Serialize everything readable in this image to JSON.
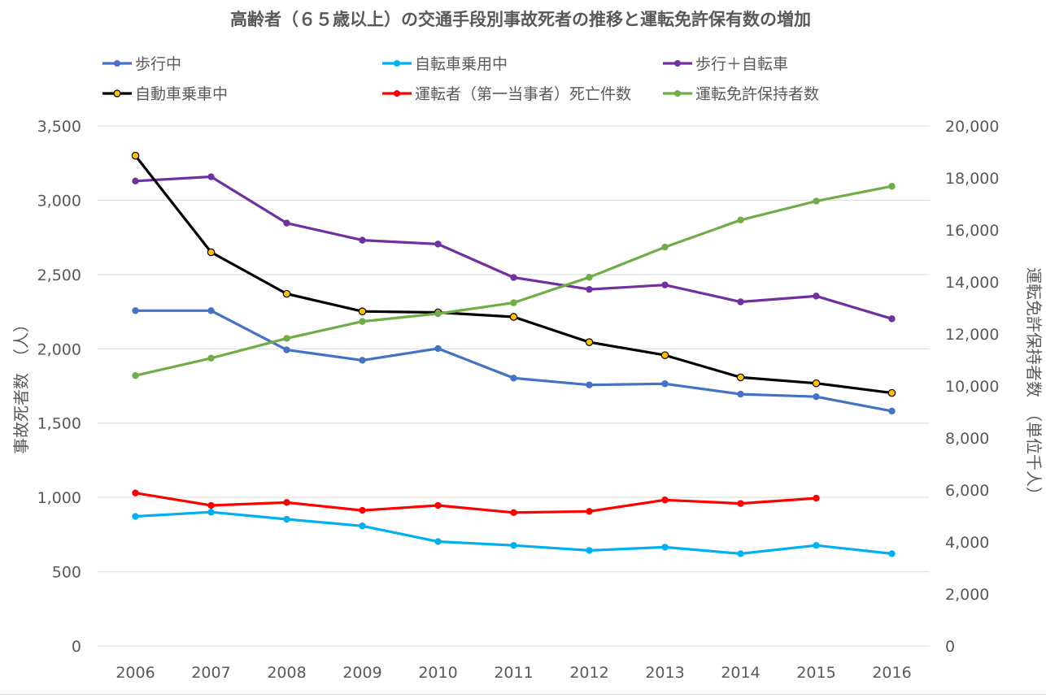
{
  "chart_data": {
    "type": "line",
    "title": "高齢者（６５歳以上）の交通手段別事故死者の推移と運転免許保有数の増加",
    "categories": [
      "2006",
      "2007",
      "2008",
      "2009",
      "2010",
      "2011",
      "2012",
      "2013",
      "2014",
      "2015",
      "2016"
    ],
    "y_left": {
      "label": "事故死者数　（人）",
      "lim": [
        0,
        3500
      ],
      "ticks": [
        "0",
        "500",
        "1,000",
        "1,500",
        "2,000",
        "2,500",
        "3,000",
        "3,500"
      ]
    },
    "y_right": {
      "label": "運転免許保持者数　（単位千人）",
      "lim": [
        0,
        20000
      ],
      "ticks": [
        "0",
        "2,000",
        "4,000",
        "6,000",
        "8,000",
        "10,000",
        "12,000",
        "14,000",
        "16,000",
        "18,000",
        "20,000"
      ]
    },
    "grid": true,
    "legend": "top",
    "series": [
      {
        "name": "歩行中",
        "axis": "left",
        "color": "#4472c4",
        "values": [
          2257,
          2257,
          1993,
          1923,
          2002,
          1803,
          1757,
          1765,
          1695,
          1678,
          1581
        ]
      },
      {
        "name": "自転車乗用中",
        "axis": "left",
        "color": "#00b0f0",
        "values": [
          872,
          901,
          853,
          808,
          703,
          677,
          643,
          665,
          621,
          677,
          621
        ]
      },
      {
        "name": "歩行＋自転車",
        "axis": "left",
        "color": "#7030a0",
        "values": [
          3129,
          3158,
          2846,
          2731,
          2705,
          2480,
          2400,
          2430,
          2316,
          2355,
          2202
        ]
      },
      {
        "name": "自動車乗車中",
        "axis": "left",
        "color": "#000000",
        "marker_color": "#ffc000",
        "values": [
          3300,
          2650,
          2370,
          2252,
          2245,
          2215,
          2045,
          1957,
          1808,
          1768,
          1703
        ]
      },
      {
        "name": "運転者（第一当事者）死亡件数",
        "axis": "left",
        "color": "#ff0000",
        "values": [
          1030,
          946,
          966,
          913,
          946,
          898,
          906,
          983,
          959,
          995,
          null
        ]
      },
      {
        "name": "運転免許保持者数",
        "axis": "right",
        "color": "#70ad47",
        "values": [
          10400,
          11070,
          11830,
          12480,
          12780,
          13200,
          14180,
          15340,
          16380,
          17110,
          17680
        ]
      }
    ]
  }
}
